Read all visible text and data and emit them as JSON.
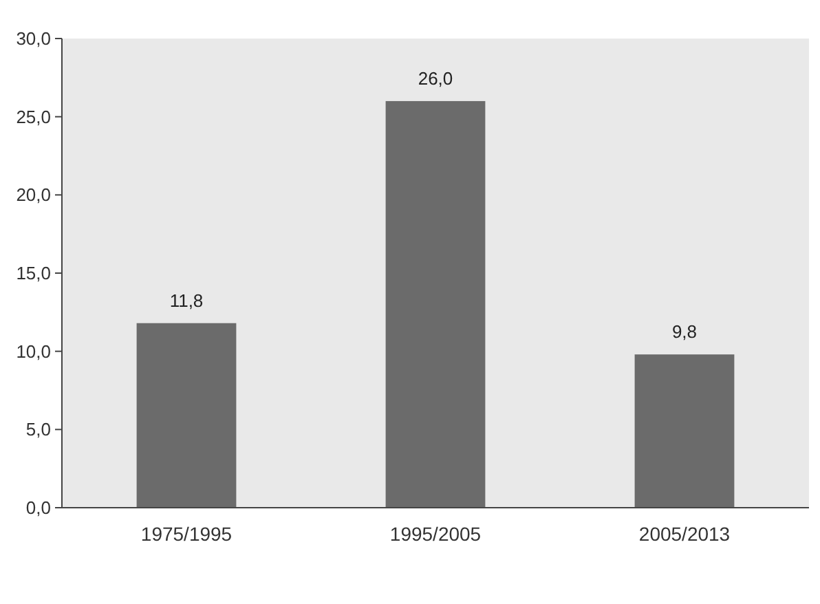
{
  "chart_data": {
    "type": "bar",
    "categories": [
      "1975/1995",
      "1995/2005",
      "2005/2013"
    ],
    "values": [
      11.8,
      26.0,
      9.8
    ],
    "value_labels": [
      "11,8",
      "26,0",
      "9,8"
    ],
    "color": "#6b6b6b",
    "ylim": [
      0,
      30
    ],
    "yticks": [
      {
        "value": 0,
        "label": "0,0"
      },
      {
        "value": 5,
        "label": "5,0"
      },
      {
        "value": 10,
        "label": "10,0"
      },
      {
        "value": 15,
        "label": "15,0"
      },
      {
        "value": 20,
        "label": "20,0"
      },
      {
        "value": 25,
        "label": "25,0"
      },
      {
        "value": 30,
        "label": "30,0"
      }
    ],
    "grid": false
  }
}
